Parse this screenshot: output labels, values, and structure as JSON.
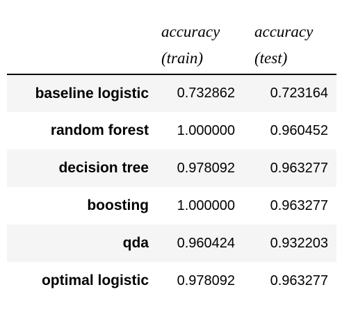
{
  "chart_data": {
    "type": "table",
    "columns": [
      {
        "line1": "accuracy",
        "line2": "(train)"
      },
      {
        "line1": "accuracy",
        "line2": "(test)"
      }
    ],
    "rows": [
      {
        "label": "baseline logistic",
        "train": "0.732862",
        "test": "0.723164"
      },
      {
        "label": "random forest",
        "train": "1.000000",
        "test": "0.960452"
      },
      {
        "label": "decision tree",
        "train": "0.978092",
        "test": "0.963277"
      },
      {
        "label": "boosting",
        "train": "1.000000",
        "test": "0.963277"
      },
      {
        "label": "qda",
        "train": "0.960424",
        "test": "0.932203"
      },
      {
        "label": "optimal logistic",
        "train": "0.978092",
        "test": "0.963277"
      }
    ]
  },
  "colors": {
    "row_shade": "#f5f5f5",
    "text": "#000000",
    "rule": "#000000"
  }
}
